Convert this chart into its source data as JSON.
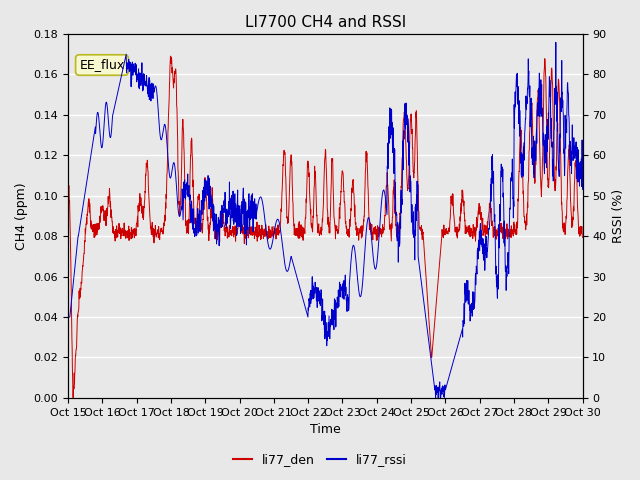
{
  "title": "LI7700 CH4 and RSSI",
  "xlabel": "Time",
  "ylabel_left": "CH4 (ppm)",
  "ylabel_right": "RSSI (%)",
  "annotation": "EE_flux",
  "xlim": [
    0,
    15
  ],
  "ylim_left": [
    0.0,
    0.18
  ],
  "ylim_right": [
    0,
    90
  ],
  "xtick_labels": [
    "Oct 15",
    "Oct 16",
    "Oct 17",
    "Oct 18",
    "Oct 19",
    "Oct 20",
    "Oct 21",
    "Oct 22",
    "Oct 23",
    "Oct 24",
    "Oct 25",
    "Oct 26",
    "Oct 27",
    "Oct 28",
    "Oct 29",
    "Oct 30"
  ],
  "background_color": "#e8e8e8",
  "grid_color": "#ffffff",
  "line1_color": "#cc0000",
  "line2_color": "#0000cc",
  "legend_line1": "li77_den",
  "legend_line2": "li77_rssi",
  "title_fontsize": 11,
  "label_fontsize": 9,
  "tick_fontsize": 8,
  "annot_fontsize": 9
}
